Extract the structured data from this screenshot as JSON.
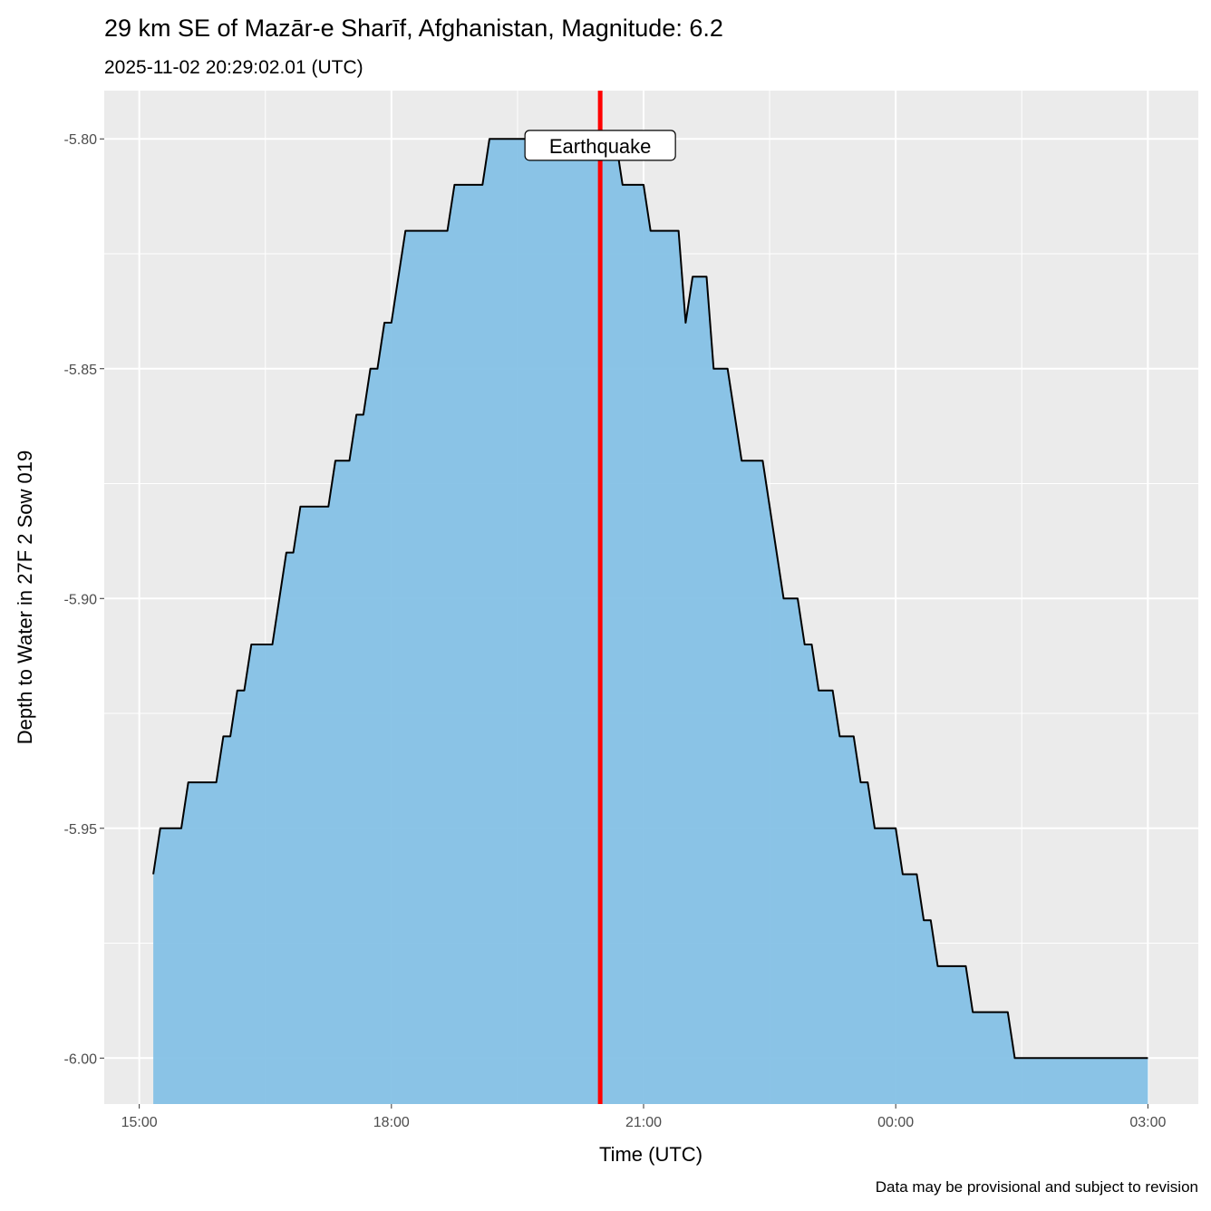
{
  "chart_data": {
    "type": "area",
    "title": "29 km SE of Mazār-e Sharīf, Afghanistan, Magnitude: 6.2",
    "subtitle": "2025-11-02 20:29:02.01 (UTC)",
    "xlabel": "Time (UTC)",
    "ylabel": "Depth to Water in 27F 2 Sow 019",
    "caption": "Data may be provisional and subject to revision",
    "x_ticks": [
      {
        "t": "2025-11-02T15:00",
        "label": "15:00"
      },
      {
        "t": "2025-11-02T18:00",
        "label": "18:00"
      },
      {
        "t": "2025-11-02T21:00",
        "label": "21:00"
      },
      {
        "t": "2025-11-03T00:00",
        "label": "00:00"
      },
      {
        "t": "2025-11-03T03:00",
        "label": "03:00"
      }
    ],
    "y_ticks": [
      -5.8,
      -5.85,
      -5.9,
      -5.95,
      -6.0
    ],
    "y_tick_labels": [
      "-5.80",
      "-5.85",
      "-5.90",
      "-5.95",
      "-6.00"
    ],
    "xlim": [
      "2025-11-02T14:35",
      "2025-11-03T03:36"
    ],
    "ylim": [
      -6.01,
      -5.7895
    ],
    "grid": true,
    "fill_color": "#85C1E6",
    "line_color": "#000000",
    "event": {
      "time": "2025-11-02T20:29:02",
      "label": "Earthquake",
      "color": "#FF0000",
      "label_value": -5.8015
    },
    "points": [
      [
        "2025-11-02T15:10",
        -5.96
      ],
      [
        "2025-11-02T15:15",
        -5.95
      ],
      [
        "2025-11-02T15:30",
        -5.95
      ],
      [
        "2025-11-02T15:35",
        -5.94
      ],
      [
        "2025-11-02T15:55",
        -5.94
      ],
      [
        "2025-11-02T16:00",
        -5.93
      ],
      [
        "2025-11-02T16:05",
        -5.93
      ],
      [
        "2025-11-02T16:10",
        -5.92
      ],
      [
        "2025-11-02T16:15",
        -5.92
      ],
      [
        "2025-11-02T16:20",
        -5.91
      ],
      [
        "2025-11-02T16:35",
        -5.91
      ],
      [
        "2025-11-02T16:45",
        -5.89
      ],
      [
        "2025-11-02T16:50",
        -5.89
      ],
      [
        "2025-11-02T16:55",
        -5.88
      ],
      [
        "2025-11-02T17:15",
        -5.88
      ],
      [
        "2025-11-02T17:20",
        -5.87
      ],
      [
        "2025-11-02T17:30",
        -5.87
      ],
      [
        "2025-11-02T17:35",
        -5.86
      ],
      [
        "2025-11-02T17:40",
        -5.86
      ],
      [
        "2025-11-02T17:45",
        -5.85
      ],
      [
        "2025-11-02T17:50",
        -5.85
      ],
      [
        "2025-11-02T17:55",
        -5.84
      ],
      [
        "2025-11-02T18:00",
        -5.84
      ],
      [
        "2025-11-02T18:10",
        -5.82
      ],
      [
        "2025-11-02T18:40",
        -5.82
      ],
      [
        "2025-11-02T18:45",
        -5.81
      ],
      [
        "2025-11-02T19:05",
        -5.81
      ],
      [
        "2025-11-02T19:10",
        -5.8
      ],
      [
        "2025-11-02T20:40",
        -5.8
      ],
      [
        "2025-11-02T20:45",
        -5.81
      ],
      [
        "2025-11-02T21:00",
        -5.81
      ],
      [
        "2025-11-02T21:05",
        -5.82
      ],
      [
        "2025-11-02T21:25",
        -5.82
      ],
      [
        "2025-11-02T21:30",
        -5.84
      ],
      [
        "2025-11-02T21:35",
        -5.83
      ],
      [
        "2025-11-02T21:45",
        -5.83
      ],
      [
        "2025-11-02T21:50",
        -5.85
      ],
      [
        "2025-11-02T22:00",
        -5.85
      ],
      [
        "2025-11-02T22:10",
        -5.87
      ],
      [
        "2025-11-02T22:25",
        -5.87
      ],
      [
        "2025-11-02T22:40",
        -5.9
      ],
      [
        "2025-11-02T22:50",
        -5.9
      ],
      [
        "2025-11-02T22:55",
        -5.91
      ],
      [
        "2025-11-02T23:00",
        -5.91
      ],
      [
        "2025-11-02T23:05",
        -5.92
      ],
      [
        "2025-11-02T23:15",
        -5.92
      ],
      [
        "2025-11-02T23:20",
        -5.93
      ],
      [
        "2025-11-02T23:30",
        -5.93
      ],
      [
        "2025-11-02T23:35",
        -5.94
      ],
      [
        "2025-11-02T23:40",
        -5.94
      ],
      [
        "2025-11-02T23:45",
        -5.95
      ],
      [
        "2025-11-03T00:00",
        -5.95
      ],
      [
        "2025-11-03T00:05",
        -5.96
      ],
      [
        "2025-11-03T00:15",
        -5.96
      ],
      [
        "2025-11-03T00:20",
        -5.97
      ],
      [
        "2025-11-03T00:25",
        -5.97
      ],
      [
        "2025-11-03T00:30",
        -5.98
      ],
      [
        "2025-11-03T00:50",
        -5.98
      ],
      [
        "2025-11-03T00:55",
        -5.99
      ],
      [
        "2025-11-03T01:20",
        -5.99
      ],
      [
        "2025-11-03T01:25",
        -6.0
      ],
      [
        "2025-11-03T03:00",
        -6.0
      ]
    ]
  }
}
